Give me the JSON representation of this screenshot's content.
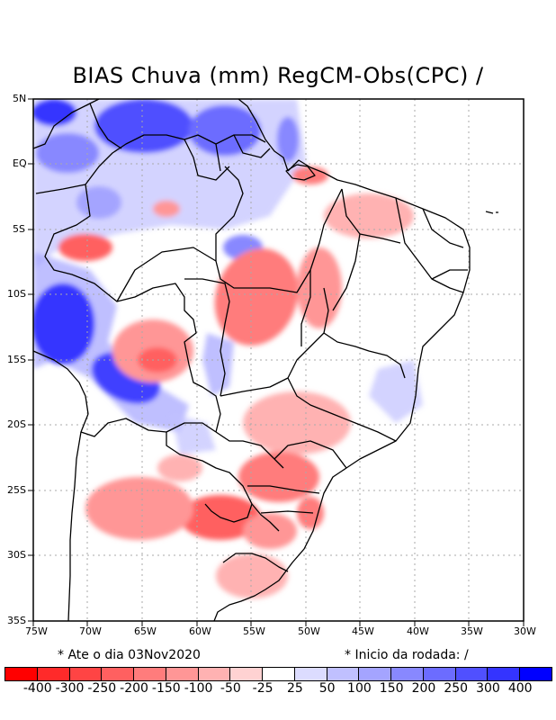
{
  "title": "BIAS Chuva (mm) RegCM-Obs(CPC) /",
  "lat_labels": [
    "5N",
    "EQ",
    "5S",
    "10S",
    "15S",
    "20S",
    "25S",
    "30S",
    "35S"
  ],
  "lon_labels": [
    "75W",
    "70W",
    "65W",
    "60W",
    "55W",
    "50W",
    "45W",
    "40W",
    "35W",
    "30W"
  ],
  "notes": {
    "left": "* Ate o dia 03Nov2020",
    "right": "* Inicio da rodada: /"
  },
  "colorbar": {
    "colors": [
      "#ff0000",
      "#ff2a2a",
      "#ff4444",
      "#ff6060",
      "#ff7c7c",
      "#ff9696",
      "#ffb2b2",
      "#ffd2d2",
      "#ffffff",
      "#dcdcff",
      "#c0c0ff",
      "#a4a4ff",
      "#8888ff",
      "#6c6cff",
      "#5050ff",
      "#3434ff",
      "#0000ff"
    ],
    "labels": [
      "-400",
      "-300",
      "-250",
      "-200",
      "-150",
      "-100",
      "-50",
      "-25",
      "25",
      "50",
      "100",
      "150",
      "200",
      "250",
      "300",
      "400"
    ]
  },
  "bias_areas": [
    {
      "region": "north-amazon",
      "color": "#5050ff"
    },
    {
      "region": "guiana-shield",
      "color": "#6c6cff"
    },
    {
      "region": "western-amazon",
      "color": "#8888ff"
    },
    {
      "region": "peru-bolivia",
      "color": "#3434ff"
    },
    {
      "region": "bolivia-east",
      "color": "#4040ff"
    },
    {
      "region": "central-west",
      "color": "#ff9696"
    },
    {
      "region": "para-south",
      "color": "#ff7c7c"
    },
    {
      "region": "amazon-west",
      "color": "#ff6060"
    },
    {
      "region": "northeast-north",
      "color": "#ffb2b2"
    },
    {
      "region": "south-brazil",
      "color": "#ff7c7c"
    },
    {
      "region": "paraguay-argentina",
      "color": "#ff9696"
    },
    {
      "region": "southeast",
      "color": "#ffb2b2"
    },
    {
      "region": "uruguay",
      "color": "#ffb2b2"
    }
  ]
}
